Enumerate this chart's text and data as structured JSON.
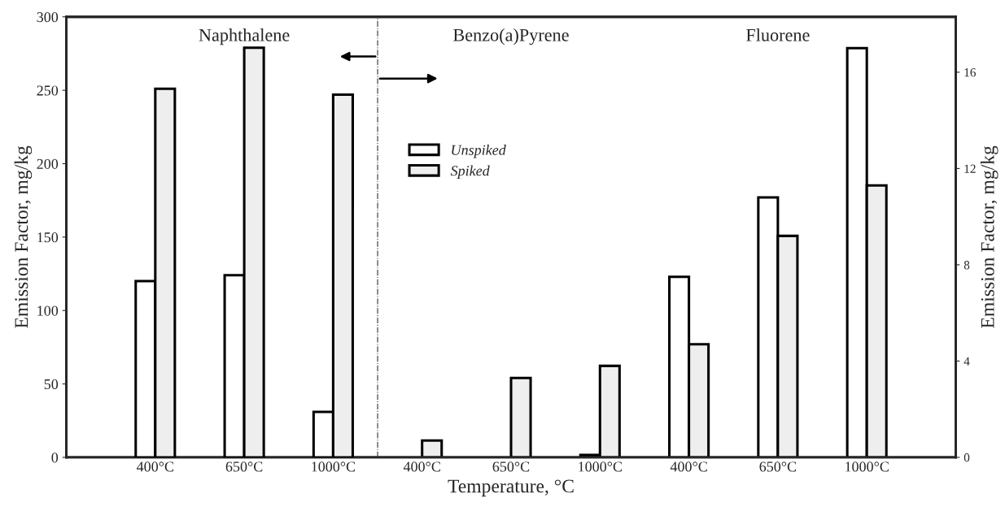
{
  "chart_data": {
    "type": "bar",
    "categories": [
      "400°C",
      "650°C",
      "1000°C",
      "400°C",
      "650°C",
      "1000°C",
      "400°C",
      "650°C",
      "1000°C"
    ],
    "series": [
      {
        "name": "Unspiked",
        "color": "#ffffff",
        "values": [
          120,
          124,
          31,
          null,
          null,
          null,
          null,
          null,
          null
        ]
      },
      {
        "name": "Spiked",
        "color": "#eeeeee",
        "values": [
          251,
          279,
          247,
          null,
          null,
          null,
          null,
          null,
          null
        ]
      },
      {
        "color": "#ffffff",
        "axis": "y2",
        "values": [
          null,
          null,
          null,
          null,
          null,
          0.1,
          7.5,
          10.8,
          17.0
        ]
      },
      {
        "color": "#eeeeee",
        "axis": "y2",
        "values": [
          null,
          null,
          null,
          0.7,
          3.3,
          3.8,
          4.7,
          9.2,
          11.3
        ]
      }
    ],
    "xlabel": "Temperature, °C",
    "ylabel": "Emission Factor, mg/kg",
    "y2label": "Emission Factor, mg/kg",
    "ylim": [
      0,
      300
    ],
    "yticks": [
      0,
      50,
      100,
      150,
      200,
      250,
      300
    ],
    "y2lim": [
      0,
      18.3
    ],
    "y2ticks": [
      0,
      4,
      8,
      12,
      16
    ],
    "annotations": [
      "Naphthalene",
      "Benzo(a)Pyrene",
      "Fluorene"
    ],
    "legend": "top",
    "grid": false
  }
}
